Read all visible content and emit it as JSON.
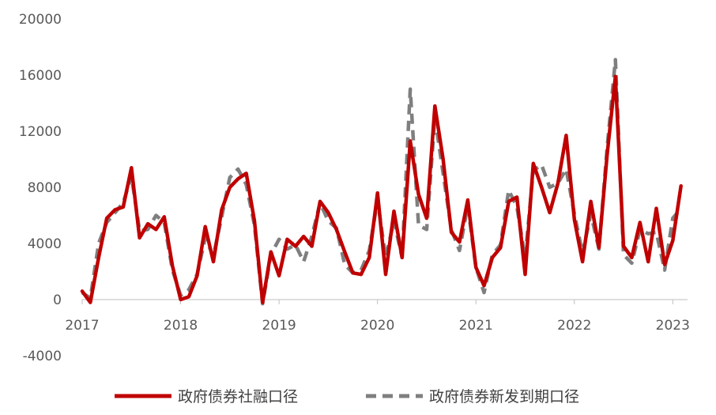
{
  "chart_data": {
    "type": "line",
    "title": "",
    "xlabel": "",
    "ylabel": "",
    "ylim": [
      -4000,
      20000
    ],
    "yticks": [
      -4000,
      0,
      4000,
      8000,
      12000,
      16000,
      20000
    ],
    "xlim": [
      2017.0,
      2023.15
    ],
    "xticks": [
      2017,
      2018,
      2019,
      2020,
      2021,
      2022,
      2023
    ],
    "grid": false,
    "legend_position": "bottom",
    "series": [
      {
        "name": "政府债券社融口径",
        "color": "#C00000",
        "style": "solid",
        "x": [
          2017.0,
          2017.083,
          2017.167,
          2017.25,
          2017.333,
          2017.417,
          2017.5,
          2017.583,
          2017.667,
          2017.75,
          2017.833,
          2017.917,
          2018.0,
          2018.083,
          2018.167,
          2018.25,
          2018.333,
          2018.417,
          2018.5,
          2018.583,
          2018.667,
          2018.75,
          2018.833,
          2018.917,
          2019.0,
          2019.083,
          2019.167,
          2019.25,
          2019.333,
          2019.417,
          2019.5,
          2019.583,
          2019.667,
          2019.75,
          2019.833,
          2019.917,
          2020.0,
          2020.083,
          2020.167,
          2020.25,
          2020.333,
          2020.417,
          2020.5,
          2020.583,
          2020.667,
          2020.75,
          2020.833,
          2020.917,
          2021.0,
          2021.083,
          2021.167,
          2021.25,
          2021.333,
          2021.417,
          2021.5,
          2021.583,
          2021.667,
          2021.75,
          2021.833,
          2021.917,
          2022.0,
          2022.083,
          2022.167,
          2022.25,
          2022.333,
          2022.417,
          2022.5,
          2022.583,
          2022.667,
          2022.75,
          2022.833,
          2022.917,
          2023.0,
          2023.083
        ],
        "y": [
          600,
          -200,
          3000,
          5800,
          6400,
          6600,
          9400,
          4400,
          5400,
          5000,
          5900,
          2400,
          0,
          200,
          1700,
          5200,
          2700,
          6400,
          8000,
          8600,
          9000,
          5600,
          -200,
          3400,
          1700,
          4300,
          3800,
          4500,
          3800,
          7000,
          6200,
          5000,
          3400,
          1900,
          1800,
          3000,
          7600,
          1800,
          6300,
          3000,
          11300,
          7500,
          5800,
          13800,
          10000,
          4800,
          4100,
          7100,
          2300,
          1000,
          3000,
          3700,
          7000,
          7300,
          1800,
          9700,
          8000,
          6200,
          8300,
          11700,
          5700,
          2700,
          7000,
          3700,
          10300,
          15900,
          3800,
          3000,
          5500,
          2700,
          6500,
          2500,
          4200,
          8100
        ]
      },
      {
        "name": "政府债券新发到期口径",
        "color": "#7F7F7F",
        "style": "dashed",
        "x": [
          2017.0,
          2017.083,
          2017.167,
          2017.25,
          2017.333,
          2017.417,
          2017.5,
          2017.583,
          2017.667,
          2017.75,
          2017.833,
          2017.917,
          2018.0,
          2018.083,
          2018.167,
          2018.25,
          2018.333,
          2018.417,
          2018.5,
          2018.583,
          2018.667,
          2018.75,
          2018.833,
          2018.917,
          2019.0,
          2019.083,
          2019.167,
          2019.25,
          2019.333,
          2019.417,
          2019.5,
          2019.583,
          2019.667,
          2019.75,
          2019.833,
          2019.917,
          2020.0,
          2020.083,
          2020.167,
          2020.25,
          2020.333,
          2020.417,
          2020.5,
          2020.583,
          2020.667,
          2020.75,
          2020.833,
          2020.917,
          2021.0,
          2021.083,
          2021.167,
          2021.25,
          2021.333,
          2021.417,
          2021.5,
          2021.583,
          2021.667,
          2021.75,
          2021.833,
          2021.917,
          2022.0,
          2022.083,
          2022.167,
          2022.25,
          2022.333,
          2022.417,
          2022.5,
          2022.583,
          2022.667,
          2022.75,
          2022.833,
          2022.917,
          2023.0,
          2023.083
        ],
        "y": [
          500,
          100,
          4000,
          5500,
          6200,
          6900,
          8800,
          4900,
          5000,
          6000,
          5500,
          2100,
          300,
          700,
          1800,
          4400,
          3100,
          5900,
          8700,
          9300,
          8200,
          5300,
          -300,
          3200,
          4300,
          3600,
          3900,
          2700,
          4500,
          6900,
          5600,
          5100,
          2500,
          1900,
          2100,
          3500,
          7100,
          3000,
          5600,
          3000,
          15000,
          5300,
          5000,
          13000,
          9000,
          5000,
          3500,
          6700,
          2300,
          500,
          3200,
          3900,
          7800,
          6600,
          3000,
          9200,
          9600,
          8000,
          8300,
          9300,
          6100,
          3300,
          6100,
          3600,
          10800,
          17100,
          3200,
          2600,
          5000,
          4700,
          4800,
          2100,
          5800,
          6500
        ]
      }
    ]
  }
}
